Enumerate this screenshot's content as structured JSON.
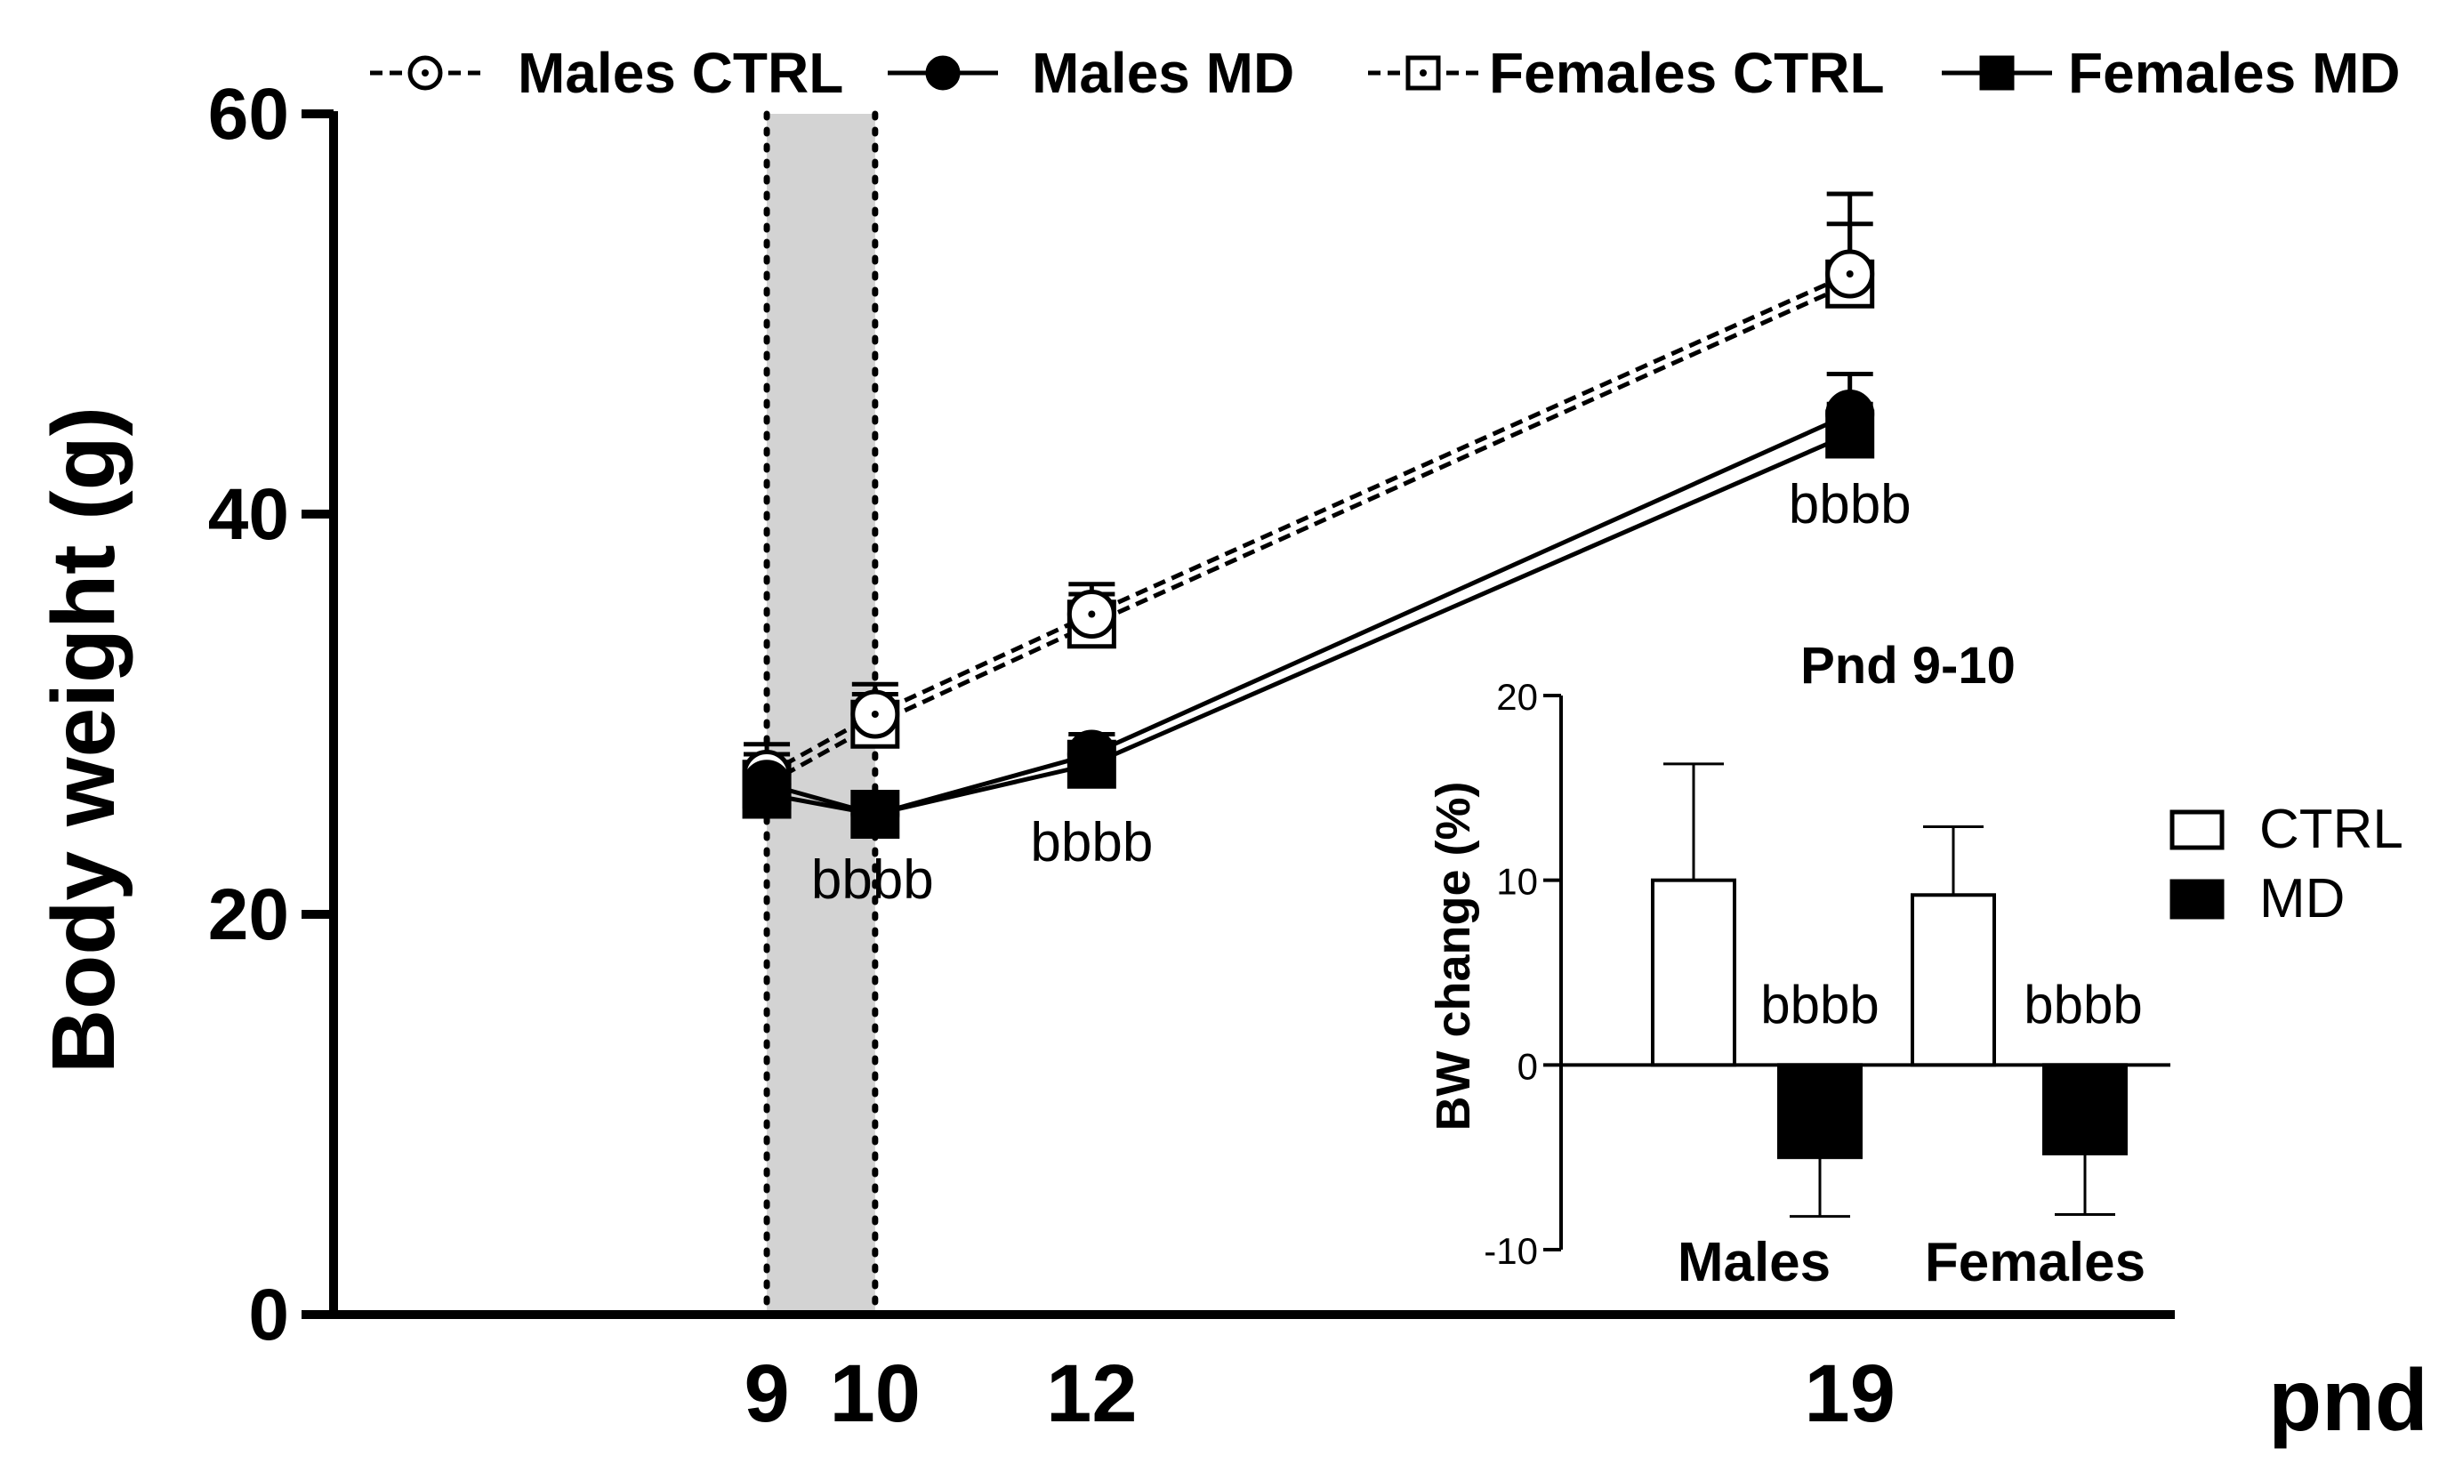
{
  "chart_data": [
    {
      "type": "line",
      "title": "",
      "xlabel": "pnd",
      "ylabel": "Body weight (g)",
      "x": [
        9,
        10,
        12,
        19
      ],
      "x_ticks": [
        "9",
        "10",
        "12",
        "19"
      ],
      "ylim": [
        0,
        60
      ],
      "xlim": [
        5,
        22
      ],
      "y_ticks": [
        "0",
        "20",
        "40",
        "60"
      ],
      "shaded_region": {
        "x_start": 9,
        "x_end": 10,
        "color": "#d3d3d3"
      },
      "legend": [
        "Males CTRL",
        "Males MD",
        "Females CTRL",
        "Females MD"
      ],
      "legend_position": "top",
      "series": [
        {
          "name": "Males CTRL",
          "values": [
            27,
            30,
            35,
            52
          ],
          "errors": [
            1.5,
            1.5,
            1.5,
            4
          ],
          "marker": "open-circle",
          "line": "dashed"
        },
        {
          "name": "Males MD",
          "values": [
            26.5,
            25,
            28,
            45
          ],
          "errors": [
            1.5,
            1,
            1,
            2
          ],
          "marker": "filled-circle",
          "line": "solid"
        },
        {
          "name": "Females CTRL",
          "values": [
            26.5,
            29.5,
            34.5,
            51.5
          ],
          "errors": [
            1.5,
            1.5,
            1.5,
            3
          ],
          "marker": "open-square",
          "line": "dashed"
        },
        {
          "name": "Females MD",
          "values": [
            26,
            25,
            27.5,
            44
          ],
          "errors": [
            1.5,
            1,
            1.5,
            1.5
          ],
          "marker": "filled-square",
          "line": "solid"
        }
      ],
      "annotations": [
        {
          "x": 10,
          "text": "bbbb"
        },
        {
          "x": 12,
          "text": "bbbb"
        },
        {
          "x": 19,
          "text": "bbbb"
        }
      ]
    },
    {
      "type": "bar",
      "title": "Pnd 9-10",
      "xlabel": "",
      "ylabel": "BW change (%)",
      "categories": [
        "Males",
        "Females"
      ],
      "ylim": [
        -10,
        20
      ],
      "y_ticks": [
        "-10",
        "0",
        "10",
        "20"
      ],
      "legend": [
        "CTRL",
        "MD"
      ],
      "legend_position": "right",
      "series": [
        {
          "name": "CTRL",
          "values": [
            10,
            9.2
          ],
          "errors": [
            6.3,
            3.7
          ],
          "color": "#ffffff"
        },
        {
          "name": "MD",
          "values": [
            -5,
            -4.8
          ],
          "errors": [
            3.2,
            3.3
          ],
          "color": "#000000"
        }
      ],
      "annotations": [
        {
          "category": "Males",
          "series": "MD",
          "text": "bbbb"
        },
        {
          "category": "Females",
          "series": "MD",
          "text": "bbbb"
        }
      ]
    }
  ]
}
